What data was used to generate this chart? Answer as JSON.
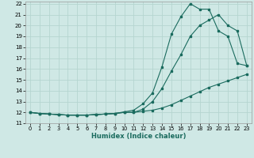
{
  "xlabel": "Humidex (Indice chaleur)",
  "bg_color": "#cfe8e5",
  "grid_color": "#b5d5d0",
  "line_color": "#1a6b5e",
  "xlim": [
    -0.5,
    23.5
  ],
  "ylim": [
    11,
    22.2
  ],
  "xticks": [
    0,
    1,
    2,
    3,
    4,
    5,
    6,
    7,
    8,
    9,
    10,
    11,
    12,
    13,
    14,
    15,
    16,
    17,
    18,
    19,
    20,
    21,
    22,
    23
  ],
  "yticks": [
    11,
    12,
    13,
    14,
    15,
    16,
    17,
    18,
    19,
    20,
    21,
    22
  ],
  "line1_x": [
    0,
    1,
    2,
    3,
    4,
    5,
    6,
    7,
    8,
    9,
    10,
    11,
    12,
    13,
    14,
    15,
    16,
    17,
    18,
    19,
    20,
    21,
    22,
    23
  ],
  "line1_y": [
    12.0,
    11.9,
    11.85,
    11.8,
    11.75,
    11.75,
    11.75,
    11.8,
    11.85,
    11.9,
    12.0,
    12.0,
    12.1,
    12.2,
    12.4,
    12.7,
    13.1,
    13.5,
    13.9,
    14.3,
    14.6,
    14.9,
    15.2,
    15.5
  ],
  "line2_x": [
    0,
    1,
    2,
    3,
    4,
    5,
    6,
    7,
    8,
    9,
    10,
    11,
    12,
    13,
    14,
    15,
    16,
    17,
    18,
    19,
    20,
    21,
    22,
    23
  ],
  "line2_y": [
    12.0,
    11.9,
    11.85,
    11.8,
    11.75,
    11.75,
    11.75,
    11.8,
    11.85,
    11.9,
    12.0,
    12.0,
    12.3,
    13.0,
    14.2,
    15.8,
    17.3,
    19.0,
    20.0,
    20.5,
    21.0,
    20.0,
    19.5,
    16.3
  ],
  "line3_x": [
    0,
    1,
    2,
    3,
    4,
    5,
    6,
    7,
    8,
    9,
    10,
    11,
    12,
    13,
    14,
    15,
    16,
    17,
    18,
    19,
    20,
    21,
    22,
    23
  ],
  "line3_y": [
    12.0,
    11.9,
    11.85,
    11.8,
    11.75,
    11.75,
    11.75,
    11.8,
    11.85,
    11.9,
    12.05,
    12.2,
    12.8,
    13.8,
    16.2,
    19.2,
    20.8,
    22.0,
    21.5,
    21.5,
    19.5,
    19.0,
    16.5,
    16.3
  ]
}
